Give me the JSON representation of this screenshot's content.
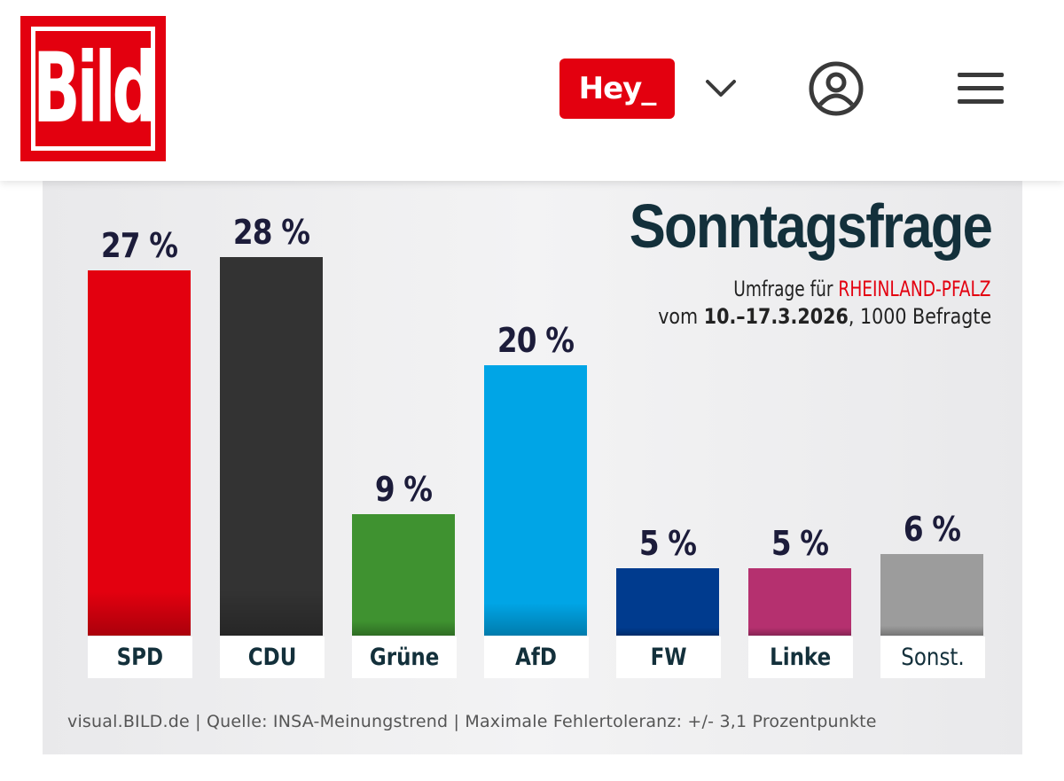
{
  "header": {
    "logo_text": "Bild",
    "hey_label": "Hey_",
    "icons": [
      "chevron-down-icon",
      "user-account-icon",
      "hamburger-menu-icon"
    ],
    "colors": {
      "brand_red": "#e3000f"
    }
  },
  "chart_data": {
    "type": "bar",
    "title": "Sonntagsfrage",
    "subtitle_prefix": "Umfrage für",
    "subtitle_region": "RHEINLAND-PFALZ",
    "date_prefix": "vom",
    "date_range": "10.–17.3.2026",
    "date_suffix": ", 1000 Befragte",
    "categories": [
      "SPD",
      "CDU",
      "Grüne",
      "AfD",
      "FW",
      "Linke",
      "Sonst."
    ],
    "values": [
      27,
      28,
      9,
      20,
      5,
      5,
      6
    ],
    "value_labels": [
      "27 %",
      "28 %",
      "9 %",
      "20 %",
      "5 %",
      "5 %",
      "6 %"
    ],
    "colors": [
      "#e3000f",
      "#333333",
      "#3f9230",
      "#00a5e6",
      "#003b8e",
      "#b5306f",
      "#9c9c9c"
    ],
    "ylim": [
      0,
      28
    ],
    "xlabel": "",
    "ylabel": "",
    "source": "visual.BILD.de | Quelle: INSA-Meinungstrend | Maximale Fehlertoleranz: +/- 3,1 Prozentpunkte"
  }
}
